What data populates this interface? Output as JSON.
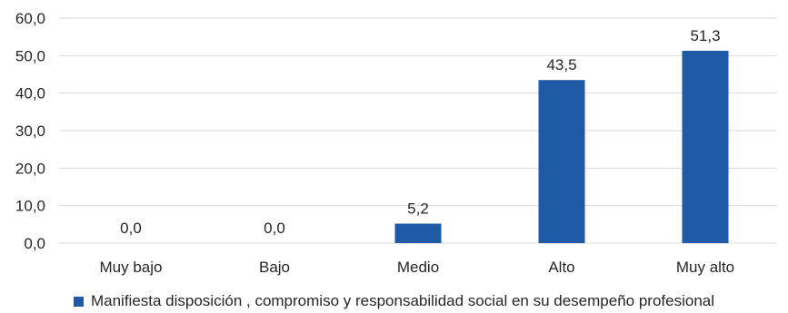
{
  "chart_data": {
    "type": "bar",
    "categories": [
      "Muy bajo",
      "Bajo",
      "Medio",
      "Alto",
      "Muy alto"
    ],
    "series": [
      {
        "name": "Manifiesta disposición , compromiso y responsabilidad social en su desempeño profesional",
        "values": [
          0.0,
          0.0,
          5.2,
          43.5,
          51.3
        ],
        "value_labels": [
          "0,0",
          "0,0",
          "5,2",
          "43,5",
          "51,3"
        ],
        "color": "#1f5aa6"
      }
    ],
    "ylim": [
      0,
      60
    ],
    "yticks": [
      0,
      10,
      20,
      30,
      40,
      50,
      60
    ],
    "ytick_labels": [
      "0,0",
      "10,0",
      "20,0",
      "30,0",
      "40,0",
      "50,0",
      "60,0"
    ],
    "grid": true,
    "gridline_color": "#d9d9d9",
    "legend_position": "bottom",
    "title": "",
    "xlabel": "",
    "ylabel": ""
  }
}
